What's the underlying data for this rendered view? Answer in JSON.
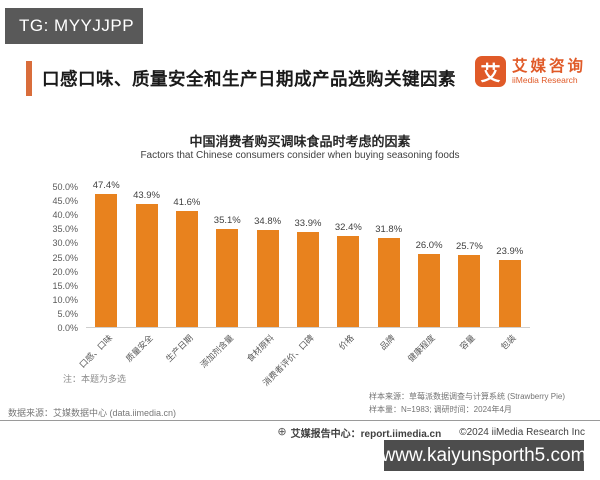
{
  "overlays": {
    "tg_banner": "TG: MYYJJPP",
    "site_banner": "www.kaiyunsporth5.com"
  },
  "header": {
    "title": "口感口味、质量安全和生产日期成产品选购关键因素",
    "logo": {
      "glyph": "艾",
      "name_cn": "艾媒咨询",
      "name_en": "iiMedia Research",
      "color": "#E05A28"
    }
  },
  "chart_data": {
    "type": "bar",
    "title": "中国消费者购买调味食品时考虑的因素",
    "subtitle": "Factors that Chinese consumers consider when buying seasoning foods",
    "categories": [
      "口感、口味",
      "质量安全",
      "生产日期",
      "添加剂含量",
      "食材原料",
      "消费者评价、口碑",
      "价格",
      "品牌",
      "健康程度",
      "容量",
      "包装"
    ],
    "values": [
      47.4,
      43.9,
      41.6,
      35.1,
      34.8,
      33.9,
      32.4,
      31.8,
      26.0,
      25.7,
      23.9
    ],
    "labels": [
      "47.4%",
      "43.9%",
      "41.6%",
      "35.1%",
      "34.8%",
      "33.9%",
      "32.4%",
      "31.8%",
      "26.0%",
      "25.7%",
      "23.9%"
    ],
    "ylim": [
      0,
      50
    ],
    "yticks": [
      "50.0%",
      "45.0%",
      "40.0%",
      "35.0%",
      "30.0%",
      "25.0%",
      "20.0%",
      "15.0%",
      "10.0%",
      "5.0%",
      "0.0%"
    ],
    "bar_color": "#E8821E",
    "grid": false,
    "legend": false,
    "xlabel": "",
    "ylabel": ""
  },
  "notes": {
    "multi_select": "注：本题为多选"
  },
  "sample_info": {
    "line1": "样本来源：草莓派数据调查与计算系统 (Strawberry Pie)",
    "line2": "样本量：N=1983; 调研时间：2024年4月"
  },
  "footer": {
    "data_source": "数据来源：艾媒数据中心 (data.iimedia.cn)",
    "report_center": "艾媒报告中心：report.iimedia.cn",
    "copyright": "©2024 iiMedia Research Inc"
  },
  "icons": {
    "globe": "⊕"
  },
  "colors": {
    "accent_bar": "#D96D3B",
    "bar_orange": "#E8821E",
    "logo_orange": "#E05A28",
    "tg_banner_bg": "#595959",
    "site_banner_bg": "#4D4D4D"
  }
}
